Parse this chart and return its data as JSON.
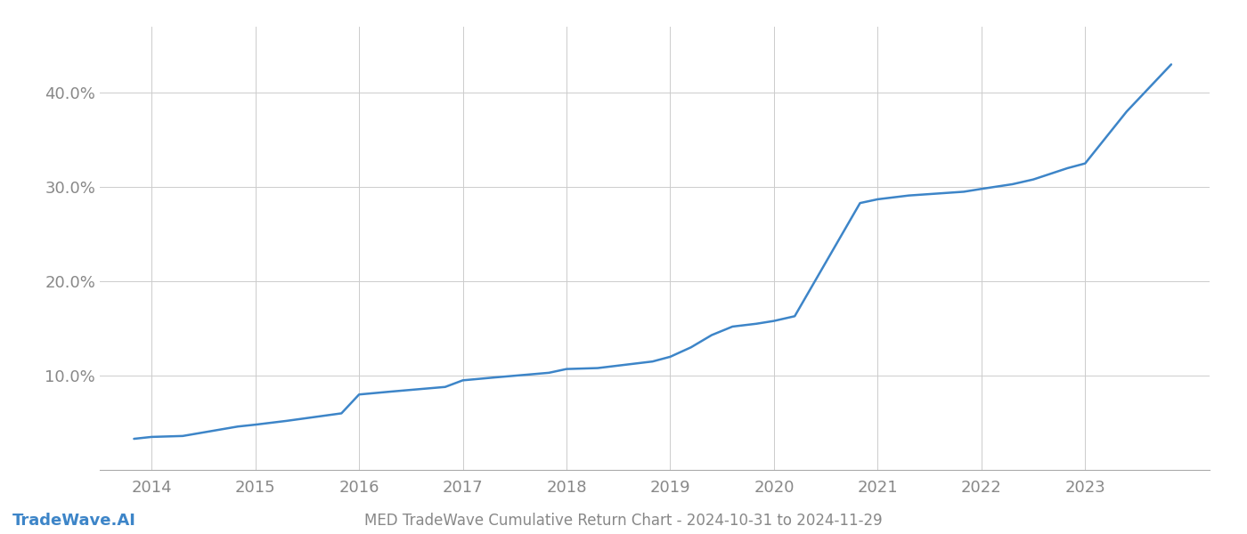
{
  "x_values": [
    2013.83,
    2014.0,
    2014.3,
    2014.83,
    2015.0,
    2015.3,
    2015.83,
    2016.0,
    2016.3,
    2016.83,
    2017.0,
    2017.3,
    2017.83,
    2018.0,
    2018.3,
    2018.83,
    2019.0,
    2019.2,
    2019.4,
    2019.6,
    2019.83,
    2020.0,
    2020.2,
    2020.83,
    2021.0,
    2021.3,
    2021.83,
    2022.0,
    2022.3,
    2022.5,
    2022.83,
    2023.0,
    2023.4,
    2023.83
  ],
  "y_values": [
    0.033,
    0.035,
    0.036,
    0.046,
    0.048,
    0.052,
    0.06,
    0.08,
    0.083,
    0.088,
    0.095,
    0.098,
    0.103,
    0.107,
    0.108,
    0.115,
    0.12,
    0.13,
    0.143,
    0.152,
    0.155,
    0.158,
    0.163,
    0.283,
    0.287,
    0.291,
    0.295,
    0.298,
    0.303,
    0.308,
    0.32,
    0.325,
    0.38,
    0.43
  ],
  "line_color": "#3d85c8",
  "line_width": 1.8,
  "bg_color": "#ffffff",
  "grid_color": "#cccccc",
  "tick_color": "#888888",
  "title": "MED TradeWave Cumulative Return Chart - 2024-10-31 to 2024-11-29",
  "watermark": "TradeWave.AI",
  "xlim": [
    2013.5,
    2024.2
  ],
  "ylim": [
    0.0,
    0.47
  ],
  "yticks": [
    0.1,
    0.2,
    0.3,
    0.4
  ],
  "ytick_labels": [
    "10.0%",
    "20.0%",
    "30.0%",
    "40.0%"
  ],
  "xtick_years": [
    2014,
    2015,
    2016,
    2017,
    2018,
    2019,
    2020,
    2021,
    2022,
    2023
  ],
  "figsize": [
    14.0,
    6.0
  ],
  "dpi": 100
}
